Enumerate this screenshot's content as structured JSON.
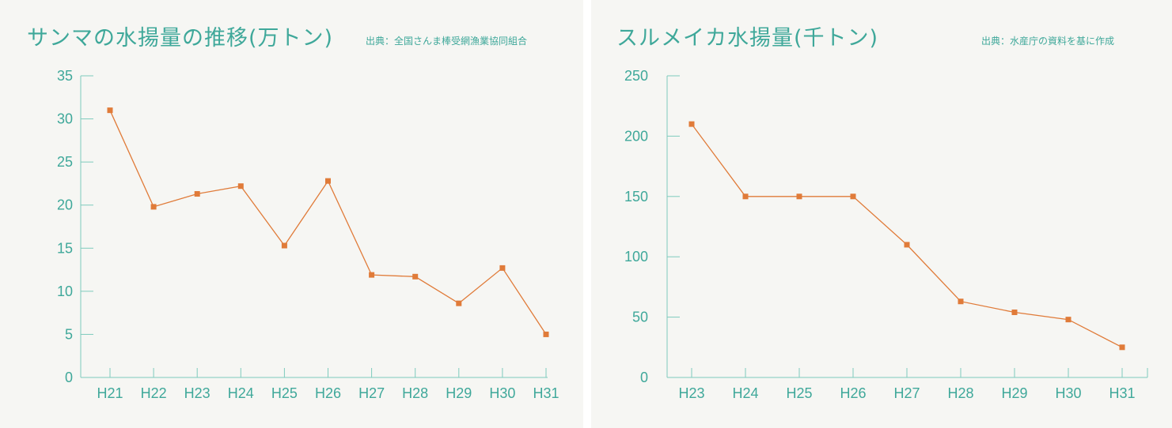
{
  "colors": {
    "axis": "#7ecbbd",
    "text": "#3fa89a",
    "series": "#e07b39",
    "panel_background": "#f6f6f3"
  },
  "chart_data": [
    {
      "type": "line",
      "title": "サンマの水揚量の推移(万トン)",
      "source": "出典：全国さんま棒受網漁業協同組合",
      "xlabel": "",
      "ylabel": "",
      "categories": [
        "H21",
        "H22",
        "H23",
        "H24",
        "H25",
        "H26",
        "H27",
        "H28",
        "H29",
        "H30",
        "H31"
      ],
      "values": [
        31.0,
        19.8,
        21.3,
        22.2,
        15.3,
        22.8,
        11.9,
        11.7,
        8.6,
        12.7,
        5.0
      ],
      "ylim": [
        0,
        35
      ],
      "yticks": [
        0,
        5,
        10,
        15,
        20,
        25,
        30,
        35
      ],
      "grid": false,
      "marker": "square"
    },
    {
      "type": "line",
      "title": "スルメイカ水揚量(千トン)",
      "source": "出典：水産庁の資料を基に作成",
      "xlabel": "",
      "ylabel": "",
      "categories": [
        "H23",
        "H24",
        "H25",
        "H26",
        "H27",
        "H28",
        "H29",
        "H30",
        "H31"
      ],
      "values": [
        210,
        150,
        150,
        150,
        110,
        63,
        54,
        48,
        25
      ],
      "ylim": [
        0,
        250
      ],
      "yticks": [
        0,
        50,
        100,
        150,
        200,
        250
      ],
      "grid": false,
      "marker": "square"
    }
  ]
}
